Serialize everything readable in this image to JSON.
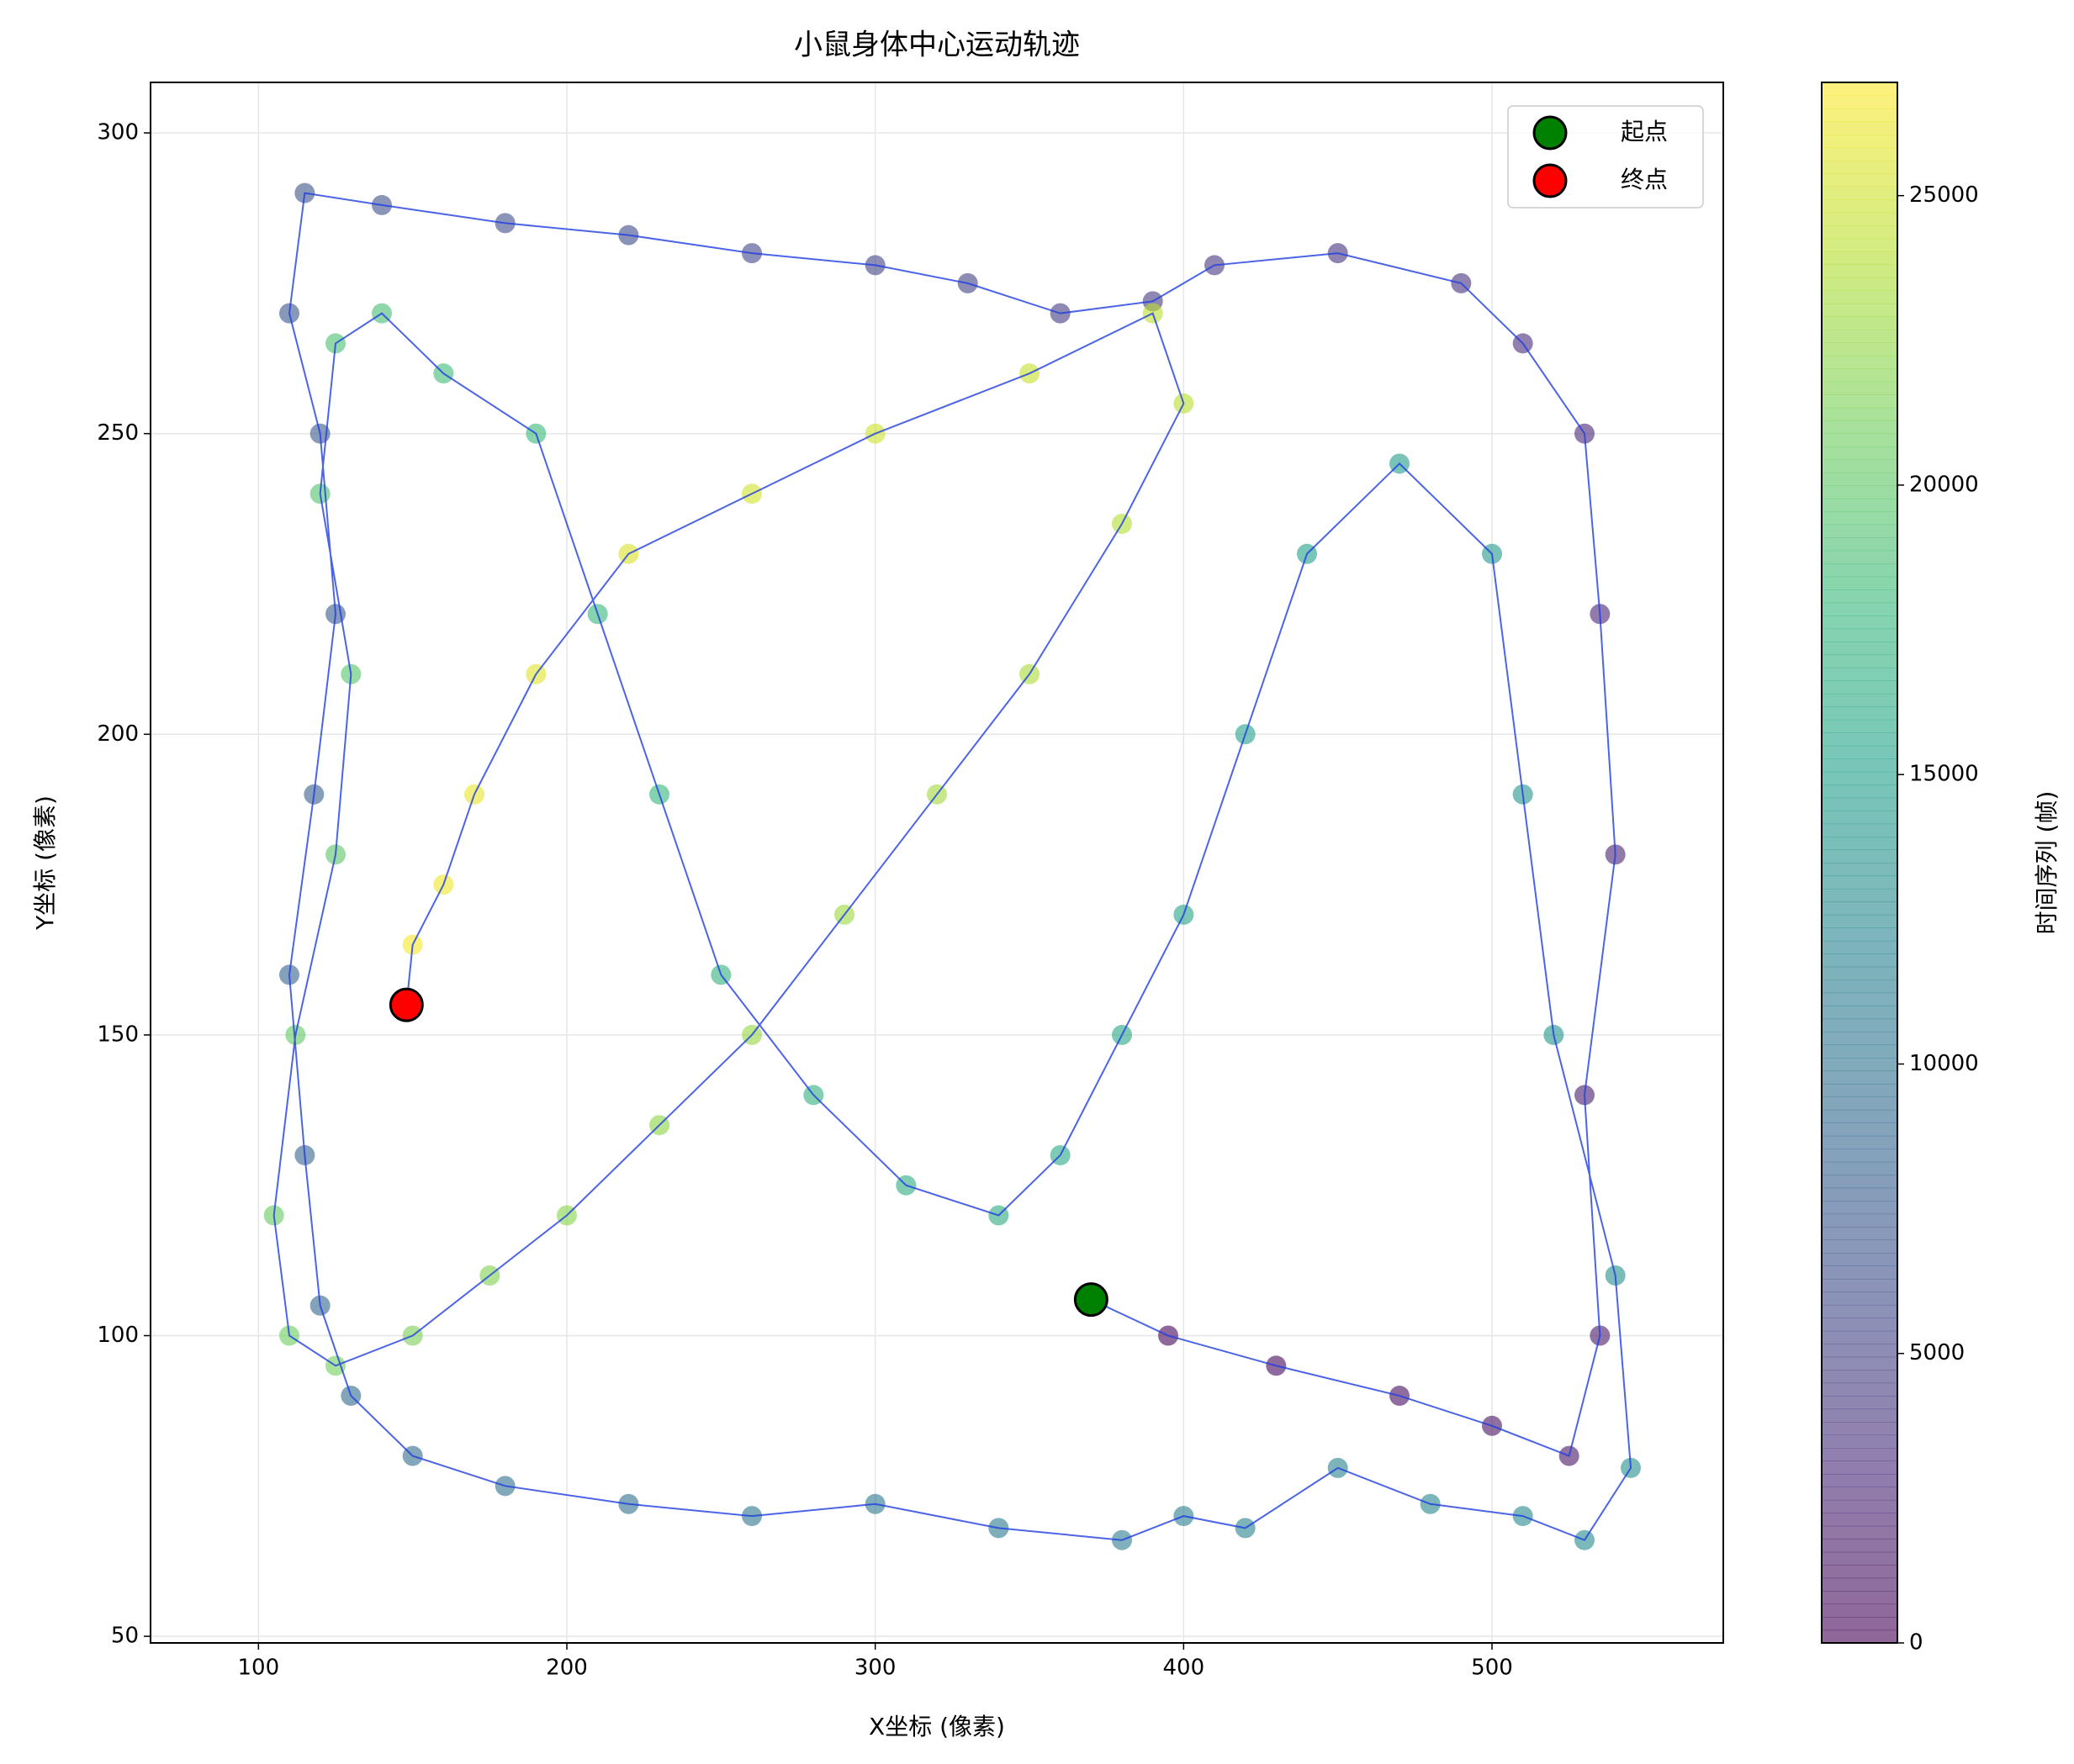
{
  "chart_data": {
    "type": "scatter-trajectory",
    "title": "小鼠身体中心运动轨迹",
    "x_label": "X坐标 (像素)",
    "y_label": "Y坐标 (像素)",
    "colorbar_label": "时间序列 (帧)",
    "colormap": "viridis",
    "line_color": "#1f3de0",
    "x": [
      370,
      395,
      430,
      470,
      500,
      525,
      535,
      530,
      540,
      535,
      530,
      510,
      490,
      450,
      410,
      390,
      360,
      330,
      300,
      260,
      220,
      180,
      140,
      115,
      110,
      120,
      125,
      118,
      110,
      115,
      120,
      130,
      150,
      180,
      220,
      260,
      300,
      340,
      380,
      400,
      420,
      450,
      480,
      510,
      530,
      545,
      540,
      520,
      510,
      500,
      470,
      440,
      420,
      400,
      380,
      360,
      340,
      310,
      280,
      250,
      230,
      210,
      190,
      160,
      140,
      125,
      120,
      130,
      125,
      112,
      105,
      110,
      125,
      150,
      175,
      200,
      230,
      260,
      290,
      320,
      350,
      380,
      400,
      390,
      350,
      300,
      260,
      220,
      190,
      170,
      160,
      150,
      148
    ],
    "y": [
      106,
      100,
      95,
      90,
      85,
      80,
      100,
      140,
      180,
      220,
      250,
      265,
      275,
      280,
      278,
      272,
      270,
      275,
      278,
      280,
      283,
      285,
      288,
      290,
      270,
      250,
      220,
      190,
      160,
      130,
      105,
      90,
      80,
      75,
      72,
      70,
      72,
      68,
      66,
      70,
      68,
      78,
      72,
      70,
      66,
      78,
      110,
      150,
      190,
      230,
      245,
      230,
      200,
      170,
      150,
      130,
      120,
      125,
      140,
      160,
      190,
      220,
      250,
      260,
      270,
      265,
      240,
      210,
      180,
      150,
      120,
      100,
      95,
      100,
      110,
      120,
      135,
      150,
      170,
      190,
      210,
      235,
      255,
      270,
      260,
      250,
      240,
      230,
      210,
      190,
      175,
      165,
      155
    ],
    "frames": [
      0,
      293,
      586,
      879,
      1172,
      1465,
      1758,
      2051,
      2344,
      2637,
      2930,
      3223,
      3516,
      3809,
      4102,
      4395,
      4688,
      4981,
      5274,
      5567,
      5860,
      6153,
      6446,
      6739,
      7032,
      7325,
      7618,
      7911,
      8204,
      8497,
      8790,
      9083,
      9376,
      9669,
      9962,
      10255,
      10548,
      10841,
      11134,
      11427,
      11720,
      12013,
      12306,
      12599,
      12892,
      13185,
      13478,
      13771,
      14064,
      14357,
      14650,
      14943,
      15236,
      15529,
      15822,
      16115,
      16408,
      16701,
      16994,
      17287,
      17580,
      17873,
      18166,
      18459,
      18752,
      19045,
      19338,
      19631,
      19924,
      20217,
      20510,
      20803,
      21096,
      21389,
      21682,
      21975,
      22268,
      22561,
      22854,
      23147,
      23440,
      23733,
      24026,
      24319,
      24612,
      24905,
      25198,
      25491,
      25784,
      26077,
      26370,
      26663,
      26956
    ],
    "markers": [
      {
        "name": "起点",
        "color": "#008000",
        "x": 370,
        "y": 106
      },
      {
        "name": "终点",
        "color": "#ff0000",
        "x": 148,
        "y": 155
      }
    ],
    "xlim": [
      65,
      575
    ],
    "ylim": [
      48.9,
      308.4
    ],
    "clim": [
      0,
      26956
    ],
    "xticks": [
      100,
      200,
      300,
      400,
      500
    ],
    "yticks": [
      50,
      100,
      150,
      200,
      250,
      300
    ],
    "cticks": [
      0,
      5000,
      10000,
      15000,
      20000,
      25000
    ],
    "grid": true,
    "legend": "upper right"
  }
}
